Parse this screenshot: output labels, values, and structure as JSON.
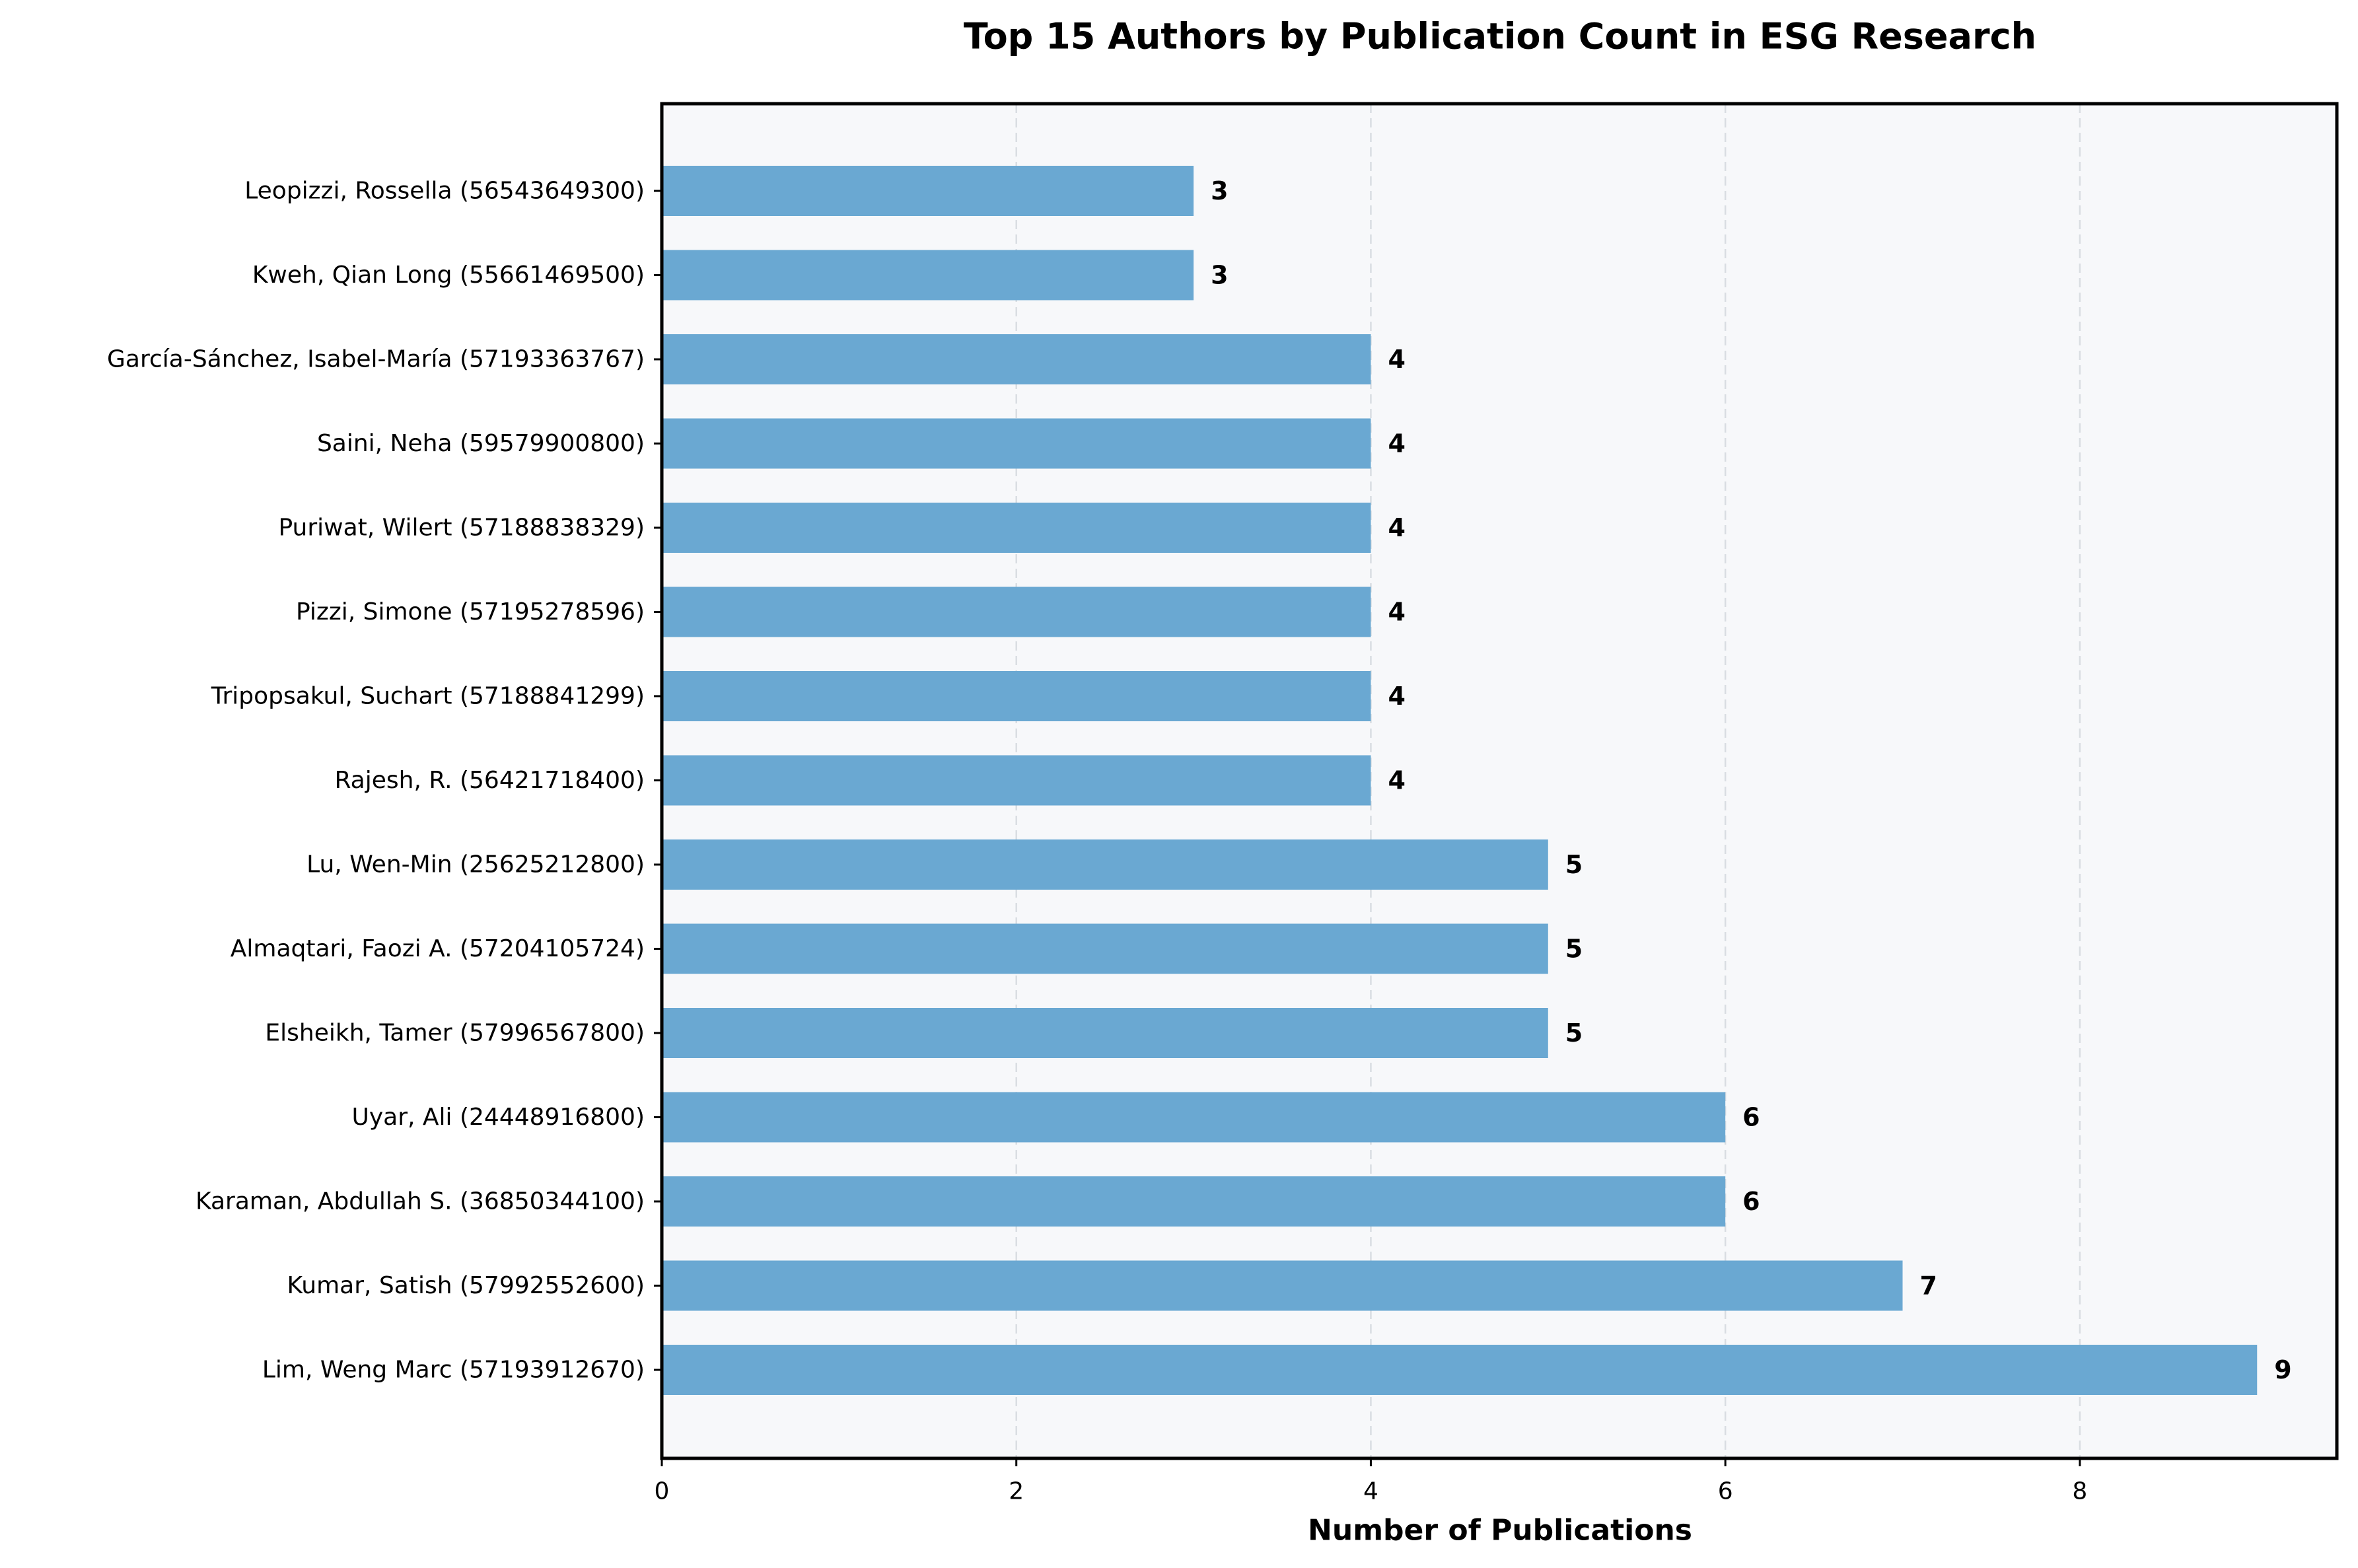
{
  "chart_data": {
    "type": "bar",
    "orientation": "horizontal",
    "title": "Top 15 Authors by Publication Count in ESG Research",
    "xlabel": "Number of Publications",
    "ylabel": "",
    "xlim": [
      0,
      9.45
    ],
    "x_ticks": [
      0,
      2,
      4,
      6,
      8
    ],
    "grid": "x-axis, dashed",
    "bar_color": "#6aa8d2",
    "plot_background": "#f7f8fa",
    "categories": [
      "Leopizzi, Rossella (56543649300)",
      "Kweh, Qian Long (55661469500)",
      "García-Sánchez, Isabel-María (57193363767)",
      "Saini, Neha (59579900800)",
      "Puriwat, Wilert (57188838329)",
      "Pizzi, Simone (57195278596)",
      "Tripopsakul, Suchart (57188841299)",
      "Rajesh, R. (56421718400)",
      "Lu, Wen-Min (25625212800)",
      "Almaqtari, Faozi A. (57204105724)",
      "Elsheikh, Tamer (57996567800)",
      "Uyar, Ali (24448916800)",
      "Karaman, Abdullah S. (36850344100)",
      "Kumar, Satish (57992552600)",
      "Lim, Weng Marc (57193912670)"
    ],
    "values": [
      3,
      3,
      4,
      4,
      4,
      4,
      4,
      4,
      5,
      5,
      5,
      6,
      6,
      7,
      9
    ]
  }
}
